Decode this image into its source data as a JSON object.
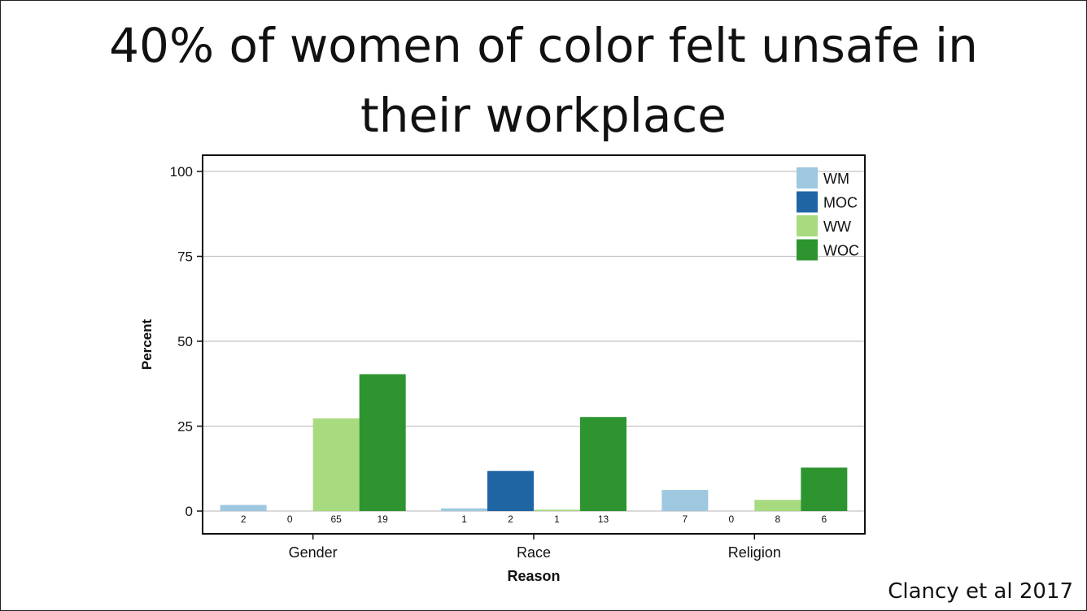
{
  "slide": {
    "title_line1": "40% of women of color felt unsafe in",
    "title_line2": "their workplace",
    "citation": "Clancy et al 2017"
  },
  "chart_data": {
    "type": "bar",
    "title": "",
    "xlabel": "Reason",
    "ylabel": "Percent",
    "ylim": [
      0,
      105
    ],
    "yticks": [
      0,
      25,
      50,
      75,
      100
    ],
    "grid": true,
    "legend_position": "top-right",
    "categories": [
      "Gender",
      "Race",
      "Religion"
    ],
    "series": [
      {
        "name": "WM",
        "color": "#9ec8e0",
        "values": [
          1.8,
          0.8,
          6.2
        ],
        "counts": [
          "2",
          "1",
          "7"
        ]
      },
      {
        "name": "MOC",
        "color": "#1f64a3",
        "values": [
          0,
          11.8,
          0
        ],
        "counts": [
          "0",
          "2",
          "0"
        ]
      },
      {
        "name": "WW",
        "color": "#a8da80",
        "values": [
          27.3,
          0.4,
          3.3
        ],
        "counts": [
          "65",
          "1",
          "8"
        ]
      },
      {
        "name": "WOC",
        "color": "#2e9430",
        "values": [
          40.3,
          27.7,
          12.8
        ],
        "counts": [
          "19",
          "13",
          "6"
        ]
      }
    ]
  }
}
